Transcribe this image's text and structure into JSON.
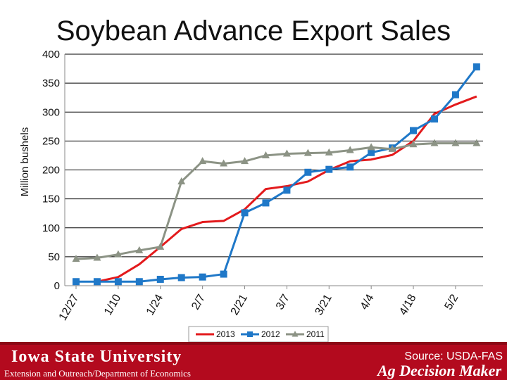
{
  "title": "Soybean Advance Export Sales",
  "footer": {
    "university": "Iowa State University",
    "department": "Extension and Outreach/Department of Economics",
    "source": "Source: USDA-FAS",
    "brand": "Ag Decision Maker"
  },
  "chart_data": {
    "type": "line",
    "title": "Soybean Advance Export Sales",
    "ylabel": "Million bushels",
    "xlabel": "",
    "ylim": [
      0,
      400
    ],
    "yticks": [
      0,
      50,
      100,
      150,
      200,
      250,
      300,
      350,
      400
    ],
    "grid": "horizontal",
    "legend_position": "bottom",
    "x": [
      "12/27",
      "1/3",
      "1/10",
      "1/17",
      "1/24",
      "1/31",
      "2/7",
      "2/14",
      "2/21",
      "2/28",
      "3/7",
      "3/14",
      "3/21",
      "3/28",
      "4/4",
      "4/11",
      "4/18",
      "4/25",
      "5/2",
      "5/9"
    ],
    "xtick_labels": [
      "12/27",
      "1/10",
      "1/24",
      "2/7",
      "2/21",
      "3/7",
      "3/21",
      "4/4",
      "4/18",
      "5/2"
    ],
    "series": [
      {
        "name": "2013",
        "color": "#e31a1c",
        "marker": "none",
        "values": [
          null,
          7,
          15,
          37,
          67,
          98,
          110,
          112,
          132,
          167,
          172,
          180,
          200,
          215,
          218,
          226,
          250,
          297,
          313,
          327
        ]
      },
      {
        "name": "2012",
        "color": "#1f78c8",
        "marker": "square",
        "values": [
          7,
          7,
          7,
          7,
          11,
          14,
          15,
          20,
          126,
          143,
          165,
          196,
          201,
          205,
          230,
          238,
          268,
          288,
          330,
          378
        ]
      },
      {
        "name": "2011",
        "color": "#8c9385",
        "marker": "triangle",
        "values": [
          46,
          48,
          54,
          61,
          67,
          180,
          215,
          211,
          215,
          225,
          228,
          229,
          230,
          234,
          239,
          236,
          244,
          246,
          246,
          246
        ]
      }
    ]
  }
}
